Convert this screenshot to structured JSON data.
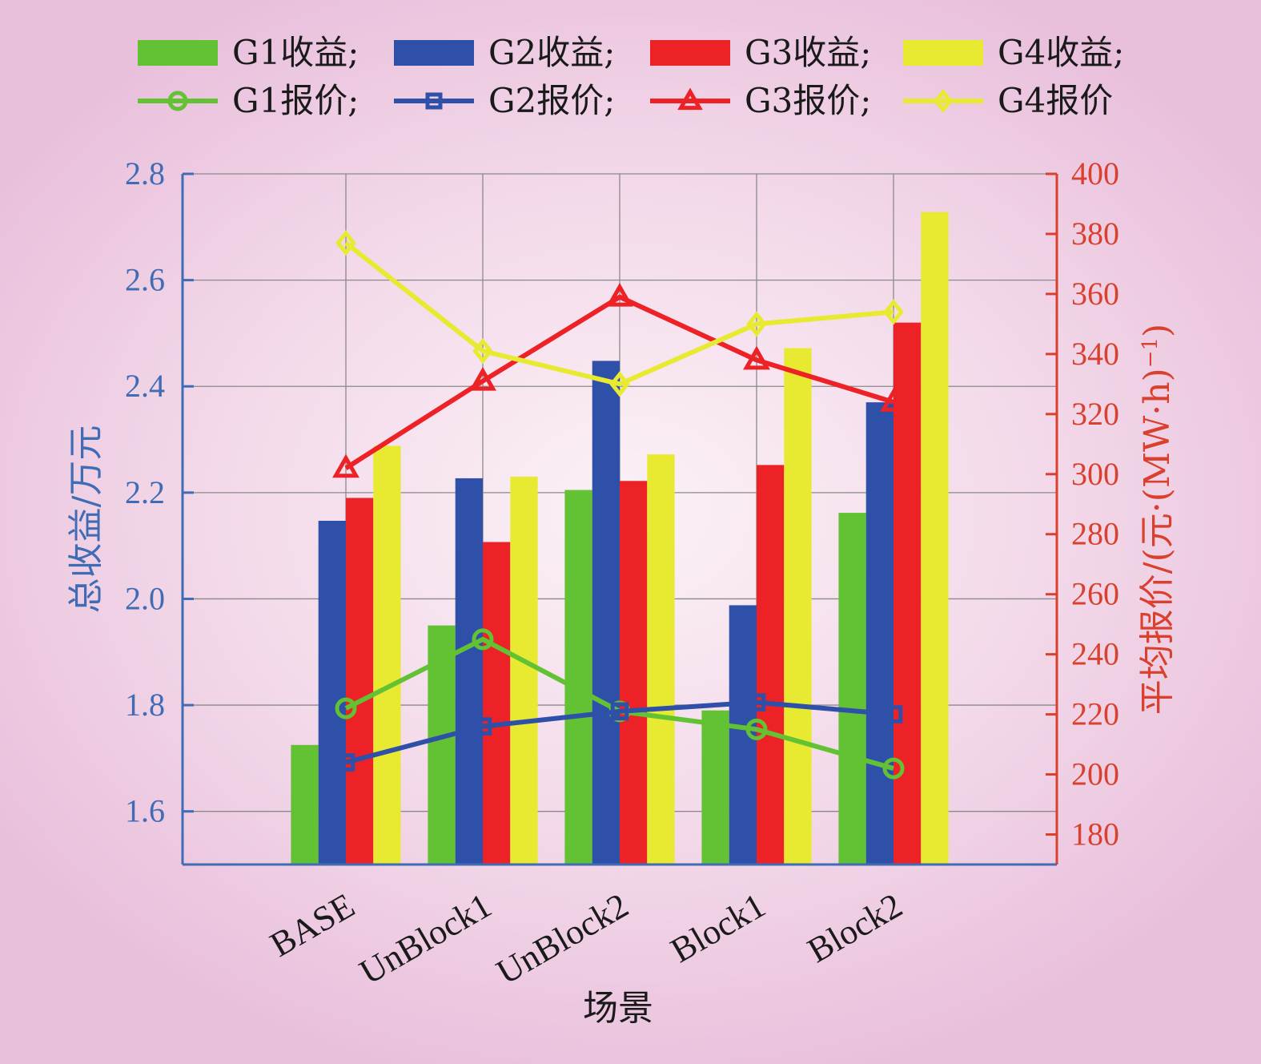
{
  "chart_data": {
    "type": "bar",
    "categories": [
      "BASE",
      "UnBlock1",
      "UnBlock2",
      "Block1",
      "Block2"
    ],
    "xlabel": "场景",
    "ylabel_left": "总收益/万元",
    "ylabel_right": "平均报价/(元·(MW·h)",
    "ylabel_right_sup": "−1",
    "ylabel_right_close": ")",
    "ylim_left": [
      1.5,
      2.8
    ],
    "ylim_right": [
      170,
      400
    ],
    "yticks_left": [
      1.6,
      1.8,
      2.0,
      2.2,
      2.4,
      2.6,
      2.8
    ],
    "yticks_right": [
      180,
      200,
      220,
      240,
      260,
      280,
      300,
      320,
      340,
      360,
      380,
      400
    ],
    "grid": true,
    "legend_position": "top",
    "bar_series": [
      {
        "name": "G1收益;",
        "color": "#62c234",
        "values": [
          1.725,
          1.95,
          2.205,
          1.79,
          2.162
        ]
      },
      {
        "name": "G2收益;",
        "color": "#2f50a9",
        "values": [
          2.147,
          2.227,
          2.448,
          1.988,
          2.37
        ]
      },
      {
        "name": "G3收益;",
        "color": "#ec2227",
        "values": [
          2.19,
          2.107,
          2.222,
          2.252,
          2.52
        ]
      },
      {
        "name": "G4收益;",
        "color": "#e8ea32",
        "values": [
          2.288,
          2.23,
          2.272,
          2.472,
          2.728
        ]
      }
    ],
    "line_series": [
      {
        "name": "G1报价;",
        "color": "#62c234",
        "marker": "circle",
        "values": [
          222,
          245,
          221,
          215,
          202
        ]
      },
      {
        "name": "G2报价;",
        "color": "#2f50a9",
        "marker": "square",
        "values": [
          204,
          216,
          221,
          224,
          220
        ]
      },
      {
        "name": "G3报价;",
        "color": "#ec2227",
        "marker": "triangle",
        "values": [
          302,
          331,
          359,
          338,
          324
        ]
      },
      {
        "name": "G4报价",
        "color": "#e8ea32",
        "marker": "diamond",
        "values": [
          377,
          341,
          330,
          350,
          354
        ]
      }
    ]
  }
}
